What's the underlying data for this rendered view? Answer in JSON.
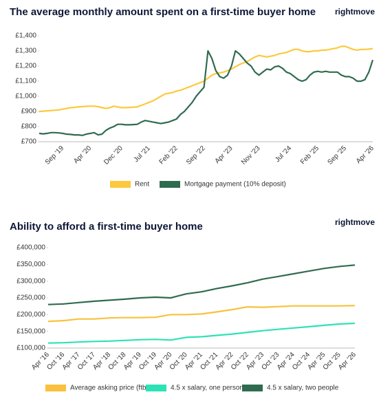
{
  "chart_data": [
    {
      "type": "line",
      "title": "The average monthly amount spent on a first-time buyer home",
      "brand": "rightmove",
      "categories": [
        null,
        null,
        null,
        null,
        null,
        null,
        "Sep '19",
        null,
        null,
        null,
        null,
        null,
        null,
        "Apr '20",
        null,
        null,
        null,
        null,
        null,
        null,
        null,
        "Dec '20",
        null,
        null,
        null,
        null,
        null,
        null,
        "Jul '21",
        null,
        null,
        null,
        null,
        null,
        null,
        "Feb '22",
        null,
        null,
        null,
        null,
        null,
        null,
        "Sep '22",
        null,
        null,
        null,
        null,
        null,
        null,
        "Apr '23",
        null,
        null,
        null,
        null,
        null,
        null,
        "Nov '23",
        null,
        null,
        null,
        null,
        null,
        null,
        null,
        "Jul '24",
        null,
        null,
        null,
        null,
        null,
        null,
        "Feb '25",
        null,
        null,
        null,
        null,
        null,
        null,
        "Sep '25",
        null,
        null,
        null,
        null,
        null,
        null,
        "Apr '26"
      ],
      "series": [
        {
          "name": "Rent",
          "color": "#fcc93c",
          "values": [
            900,
            902,
            904,
            906,
            908,
            910,
            915,
            920,
            925,
            927,
            930,
            932,
            934,
            935,
            935,
            932,
            925,
            920,
            925,
            935,
            930,
            925,
            925,
            927,
            928,
            930,
            940,
            950,
            960,
            970,
            985,
            1000,
            1015,
            1020,
            1025,
            1035,
            1040,
            1050,
            1060,
            1070,
            1080,
            1090,
            1100,
            1120,
            1140,
            1150,
            1155,
            1160,
            1170,
            1180,
            1195,
            1210,
            1220,
            1230,
            1245,
            1260,
            1270,
            1265,
            1260,
            1265,
            1270,
            1280,
            1285,
            1290,
            1300,
            1310,
            1310,
            1300,
            1295,
            1295,
            1300,
            1300,
            1305,
            1305,
            1310,
            1315,
            1320,
            1330,
            1330,
            1320,
            1310,
            1305,
            1310,
            1310,
            1312,
            1315
          ]
        },
        {
          "name": "Mortgage payment (10% deposit)",
          "color": "#2f6b4f",
          "values": [
            755,
            752,
            755,
            760,
            760,
            758,
            755,
            750,
            748,
            745,
            745,
            742,
            750,
            755,
            760,
            745,
            750,
            775,
            790,
            800,
            815,
            815,
            812,
            812,
            813,
            815,
            830,
            840,
            835,
            830,
            825,
            820,
            825,
            830,
            840,
            850,
            880,
            900,
            930,
            960,
            1000,
            1030,
            1060,
            1300,
            1250,
            1170,
            1130,
            1120,
            1140,
            1200,
            1300,
            1280,
            1250,
            1220,
            1200,
            1160,
            1140,
            1160,
            1180,
            1175,
            1195,
            1200,
            1185,
            1160,
            1150,
            1130,
            1110,
            1100,
            1110,
            1140,
            1160,
            1165,
            1160,
            1165,
            1160,
            1160,
            1160,
            1140,
            1130,
            1130,
            1120,
            1100,
            1100,
            1110,
            1160,
            1240
          ]
        }
      ],
      "ylim": [
        700,
        1400
      ],
      "yticks": [
        {
          "value": 700,
          "label": "£700"
        },
        {
          "value": 800,
          "label": "£800"
        },
        {
          "value": 900,
          "label": "£900"
        },
        {
          "value": 1000,
          "label": "£1,000"
        },
        {
          "value": 1100,
          "label": "£1,100"
        },
        {
          "value": 1200,
          "label": "£1,200"
        },
        {
          "value": 1300,
          "label": "£1,300"
        },
        {
          "value": 1400,
          "label": "£1,400"
        }
      ]
    },
    {
      "type": "line",
      "title": "Ability to afford a first-time buyer home",
      "brand": "rightmove",
      "categories": [
        "Apr '16",
        "Oct '16",
        "Apr '17",
        "Oct '17",
        "Apr '18",
        "Oct '18",
        "Apr '19",
        "Oct '19",
        "Apr '20",
        "Oct '20",
        "Apr '21",
        "Oct '21",
        "Apr '22",
        "Oct '22",
        "Apr '23",
        "Oct '23",
        "Apr '24",
        "Oct '24",
        "Apr '25",
        "Oct '25",
        "Apr '26"
      ],
      "series": [
        {
          "name": "Average asking price (ftb)",
          "color": "#f9c13d",
          "values": [
            180000,
            182000,
            187000,
            187000,
            190000,
            191000,
            191000,
            192000,
            200000,
            200000,
            202000,
            208000,
            215000,
            223000,
            222000,
            224000,
            226000,
            226000,
            226000,
            226000,
            227000
          ]
        },
        {
          "name": "4.5 x salary, one person",
          "color": "#2de2b5",
          "values": [
            115000,
            116000,
            118000,
            120000,
            121000,
            123000,
            125000,
            126000,
            124000,
            132000,
            134000,
            138000,
            142000,
            147000,
            152000,
            156000,
            160000,
            164000,
            168000,
            172000,
            174000
          ]
        },
        {
          "name": "4.5 x salary, two people",
          "color": "#2f6b4f",
          "values": [
            230000,
            232000,
            236000,
            240000,
            243000,
            246000,
            250000,
            252000,
            250000,
            262000,
            268000,
            278000,
            286000,
            295000,
            306000,
            314000,
            322000,
            330000,
            338000,
            344000,
            348000
          ]
        }
      ],
      "ylim": [
        100000,
        400000
      ],
      "yticks": [
        {
          "value": 100000,
          "label": "£100,000"
        },
        {
          "value": 150000,
          "label": "£150,000"
        },
        {
          "value": 200000,
          "label": "£200,000"
        },
        {
          "value": 250000,
          "label": "£250,000"
        },
        {
          "value": 300000,
          "label": "£300,000"
        },
        {
          "value": 350000,
          "label": "£350,000"
        },
        {
          "value": 400000,
          "label": "£400,000"
        }
      ]
    }
  ]
}
